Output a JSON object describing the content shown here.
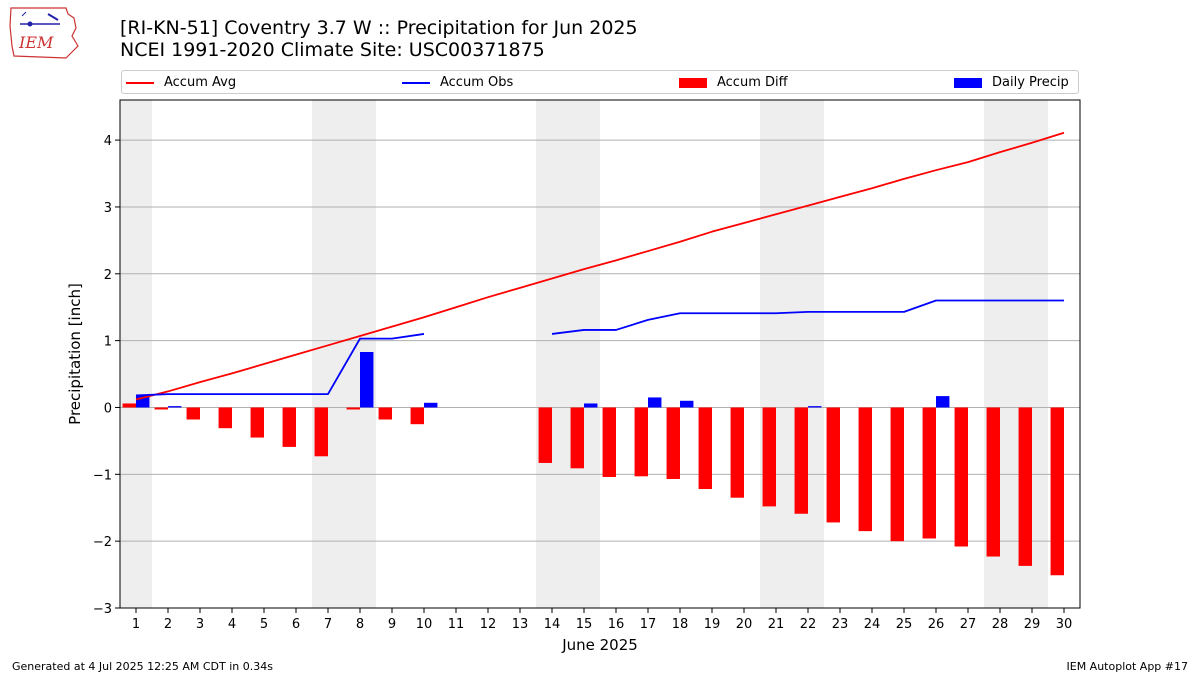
{
  "header": {
    "title_line1": "[RI-KN-51] Coventry 3.7 W :: Precipitation for Jun 2025",
    "title_line2": "NCEI 1991-2020 Climate Site: USC00371875"
  },
  "logo": {
    "text": "IEM"
  },
  "footer": {
    "left": "Generated at 4 Jul 2025 12:25 AM CDT in 0.34s",
    "right": "IEM Autoplot App #17"
  },
  "colors": {
    "accum_avg": "#ff0000",
    "accum_obs": "#0000ff",
    "accum_diff": "#ff0000",
    "daily_precip": "#0000ff",
    "weekend_shade": "#eeeeee",
    "grid": "#b0b0b0"
  },
  "chart_data": {
    "type": "bar",
    "xlabel": "June 2025",
    "ylabel": "Precipitation [inch]",
    "xlim": [
      0.5,
      30.5
    ],
    "ylim": [
      -3.0,
      4.6
    ],
    "yticks": [
      -3,
      -2,
      -1,
      0,
      1,
      2,
      3,
      4
    ],
    "ytick_labels": [
      "−3",
      "−2",
      "−1",
      "0",
      "1",
      "2",
      "3",
      "4"
    ],
    "days": [
      1,
      2,
      3,
      4,
      5,
      6,
      7,
      8,
      9,
      10,
      11,
      12,
      13,
      14,
      15,
      16,
      17,
      18,
      19,
      20,
      21,
      22,
      23,
      24,
      25,
      26,
      27,
      28,
      29,
      30
    ],
    "grid": "horizontal",
    "legend_position": "top",
    "legend": [
      "Accum Avg",
      "Accum Obs",
      "Accum Diff",
      "Daily Precip"
    ],
    "shaded_days": [
      [
        1,
        1
      ],
      [
        7,
        8
      ],
      [
        14,
        15
      ],
      [
        21,
        22
      ],
      [
        28,
        29
      ]
    ],
    "series": [
      {
        "name": "Accum Avg",
        "kind": "line",
        "values": [
          0.12,
          0.24,
          0.38,
          0.51,
          0.65,
          0.79,
          0.93,
          1.07,
          1.21,
          1.35,
          1.5,
          1.65,
          1.79,
          1.93,
          2.07,
          2.2,
          2.34,
          2.48,
          2.63,
          2.76,
          2.89,
          3.02,
          3.15,
          3.28,
          3.42,
          3.55,
          3.67,
          3.82,
          3.96,
          4.11
        ]
      },
      {
        "name": "Accum Obs",
        "kind": "line",
        "values": [
          0.18,
          0.2,
          0.2,
          0.2,
          0.2,
          0.2,
          0.2,
          1.03,
          1.03,
          1.1,
          null,
          null,
          null,
          1.1,
          1.16,
          1.16,
          1.31,
          1.41,
          1.41,
          1.41,
          1.41,
          1.43,
          1.43,
          1.43,
          1.43,
          1.6,
          1.6,
          1.6,
          1.6,
          1.6
        ]
      },
      {
        "name": "Accum Diff",
        "kind": "bar",
        "values": [
          0.06,
          -0.03,
          -0.18,
          -0.31,
          -0.45,
          -0.59,
          -0.73,
          -0.03,
          -0.18,
          -0.25,
          null,
          null,
          null,
          -0.83,
          -0.91,
          -1.04,
          -1.03,
          -1.07,
          -1.22,
          -1.35,
          -1.48,
          -1.59,
          -1.72,
          -1.85,
          -2.0,
          -1.96,
          -2.08,
          -2.23,
          -2.37,
          -2.51
        ]
      },
      {
        "name": "Daily Precip",
        "kind": "bar",
        "values": [
          0.18,
          0.02,
          0.0,
          0.0,
          0.0,
          0.0,
          0.0,
          0.83,
          0.0,
          0.07,
          null,
          null,
          null,
          0.0,
          0.06,
          0.0,
          0.15,
          0.1,
          0.0,
          0.0,
          0.0,
          0.02,
          0.0,
          0.0,
          0.0,
          0.17,
          0.0,
          0.0,
          0.0,
          0.0
        ]
      }
    ]
  }
}
